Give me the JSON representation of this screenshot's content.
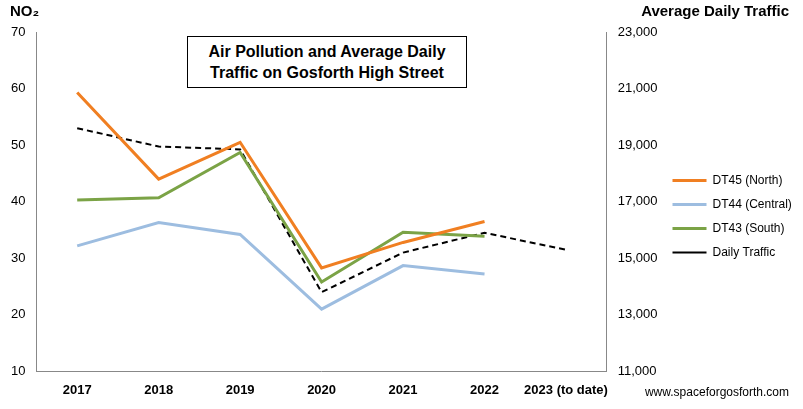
{
  "chart_data": {
    "type": "line",
    "title": "Air Pollution and Average Daily Traffic  on Gosforth High Street",
    "y_label": "NO₂",
    "y2_label": "Average Daily Traffic",
    "annotations": [
      "www.spaceforgosforth.com"
    ],
    "categories": [
      "2017",
      "2018",
      "2019",
      "2020",
      "2021",
      "2022",
      "2023 (to date)"
    ],
    "series": [
      {
        "name": "DT45 (North)",
        "color": "#f07f22",
        "line_style": "solid",
        "values": [
          59.3,
          44.0,
          50.5,
          28.3,
          32.8,
          36.5,
          null
        ]
      },
      {
        "name": "DT44 (Central)",
        "color": "#9dbde0",
        "line_style": "solid",
        "values": [
          32.2,
          36.3,
          34.2,
          21.0,
          28.7,
          27.2,
          null
        ]
      },
      {
        "name": "DT43 (South)",
        "color": "#7ba346",
        "line_style": "solid",
        "values": [
          40.3,
          40.7,
          48.7,
          25.8,
          34.6,
          33.9,
          null
        ]
      },
      {
        "name": "Daily Traffic",
        "color": "#000000",
        "line_style": "dashed",
        "axis": "y2",
        "values": [
          19600,
          18950,
          18850,
          13800,
          15200,
          15900,
          15300
        ]
      }
    ],
    "ylim": [
      10,
      70
    ],
    "yticks": [
      10,
      20,
      30,
      40,
      50,
      60,
      70
    ],
    "y2lim": [
      11000,
      23000
    ],
    "y2ticks": [
      {
        "value": 11000,
        "label": "11,000"
      },
      {
        "value": 13000,
        "label": "13,000"
      },
      {
        "value": 15000,
        "label": "15,000"
      },
      {
        "value": 17000,
        "label": "17,000"
      },
      {
        "value": 19000,
        "label": "19,000"
      },
      {
        "value": 21000,
        "label": "21,000"
      },
      {
        "value": 23000,
        "label": "23,000"
      }
    ],
    "grid": false,
    "legend": "right"
  }
}
